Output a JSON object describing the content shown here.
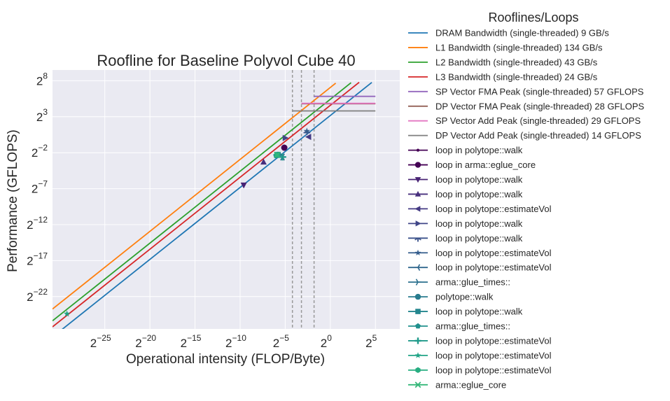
{
  "chart_data": {
    "type": "line",
    "title": "Roofline for Baseline Polyvol Cube 40",
    "xlabel": "Operational intensity (FLOP/Byte)",
    "ylabel": "Performance (GFLOPS)",
    "xscale": "log2",
    "yscale": "log2",
    "xlim_log2": [
      -30.8,
      7.7
    ],
    "ylim_log2": [
      -26.5,
      9.5
    ],
    "xticks": [
      {
        "base": "2",
        "exp": "−25",
        "v": -25
      },
      {
        "base": "2",
        "exp": "−20",
        "v": -20
      },
      {
        "base": "2",
        "exp": "−15",
        "v": -15
      },
      {
        "base": "2",
        "exp": "−10",
        "v": -10
      },
      {
        "base": "2",
        "exp": "−5",
        "v": -5
      },
      {
        "base": "2",
        "exp": "0",
        "v": 0
      },
      {
        "base": "2",
        "exp": "5",
        "v": 5
      }
    ],
    "yticks": [
      {
        "base": "2",
        "exp": "−22",
        "v": -22
      },
      {
        "base": "2",
        "exp": "−17",
        "v": -17
      },
      {
        "base": "2",
        "exp": "−12",
        "v": -12
      },
      {
        "base": "2",
        "exp": "−7",
        "v": -7
      },
      {
        "base": "2",
        "exp": "−2",
        "v": -2
      },
      {
        "base": "2",
        "exp": "3",
        "v": 3
      },
      {
        "base": "2",
        "exp": "8",
        "v": 8
      }
    ],
    "grid": true,
    "legend_title": "Rooflines/Loops",
    "legend_position": "outside-right",
    "bandwidth_rooflines": [
      {
        "name": "DRAM Bandwidth (single-threaded) 9 GB/s",
        "gbps": 9,
        "color": "#1f77b4",
        "x_end_log2": 4.6
      },
      {
        "name": "L1 Bandwidth (single-threaded) 134 GB/s",
        "gbps": 134,
        "color": "#ff7f0e",
        "x_end_log2": 0.6
      },
      {
        "name": "L2 Bandwidth (single-threaded) 43 GB/s",
        "gbps": 43,
        "color": "#2ca02c",
        "x_end_log2": 2.3
      },
      {
        "name": "L3 Bandwidth (single-threaded) 24 GB/s",
        "gbps": 24,
        "color": "#d62728",
        "x_end_log2": 3.2
      }
    ],
    "compute_rooflines": [
      {
        "name": "SP Vector FMA Peak (single-threaded) 57 GFLOPS",
        "gflops": 57,
        "color": "#9467bd",
        "x_start_log2": -1.8
      },
      {
        "name": "DP Vector FMA Peak (single-threaded) 28 GFLOPS",
        "gflops": 28,
        "color": "#8c564b",
        "x_start_log2": -3.2
      },
      {
        "name": "SP Vector Add Peak (single-threaded) 29 GFLOPS",
        "gflops": 29,
        "color": "#e377c2",
        "x_start_log2": -3.2
      },
      {
        "name": "DP Vector Add Peak (single-threaded) 14 GFLOPS",
        "gflops": 14,
        "color": "#7f7f7f",
        "x_start_log2": -4.2
      }
    ],
    "compute_x_end_log2": 5.0,
    "ridge_lines_log2": [
      -4.2,
      -3.2,
      -1.8
    ],
    "loops": [
      {
        "name": "loop in polytope::walk",
        "marker": "point",
        "color": "#440154",
        "x": -5.1,
        "y": -1.3
      },
      {
        "name": "loop in arma::eglue_core",
        "marker": "circle",
        "color": "#440154",
        "x": -5.1,
        "y": -1.3
      },
      {
        "name": "loop in polytope::walk",
        "marker": "triangle-down",
        "color": "#482374",
        "x": -9.6,
        "y": -6.5
      },
      {
        "name": "loop in polytope::walk",
        "marker": "triangle-up",
        "color": "#472f7d",
        "x": -7.4,
        "y": -3.3
      },
      {
        "name": "loop in polytope::estimateVol",
        "marker": "triangle-left",
        "color": "#443a83",
        "x": -2.4,
        "y": 0.2
      },
      {
        "name": "loop in polytope::walk",
        "marker": "triangle-right",
        "color": "#404688",
        "x": -5.0,
        "y": 0.05
      },
      {
        "name": "loop in polytope::walk",
        "marker": "tri-down",
        "color": "#3b528b",
        "x": -2.6,
        "y": 1.0
      },
      {
        "name": "loop in polytope::estimateVol",
        "marker": "star",
        "color": "#355e8d",
        "x": -2.6,
        "y": 1.0
      },
      {
        "name": "loop in polytope::estimateVol",
        "marker": "tri-left",
        "color": "#31688e",
        "x": -5.3,
        "y": -2.6
      },
      {
        "name": "arma::glue_times::",
        "marker": "tri-right",
        "color": "#2c718e",
        "x": -5.3,
        "y": -2.6
      },
      {
        "name": "polytope::walk",
        "marker": "circle",
        "color": "#287c8e",
        "x": -5.8,
        "y": -2.3
      },
      {
        "name": "loop in polytope::walk",
        "marker": "square",
        "color": "#24868e",
        "x": -5.8,
        "y": -2.3
      },
      {
        "name": "arma::glue_times::",
        "marker": "pentagon",
        "color": "#21908d",
        "x": -6.0,
        "y": -2.4
      },
      {
        "name": "loop in polytope::estimateVol",
        "marker": "plus",
        "color": "#1f9a8a",
        "x": -5.3,
        "y": -2.6
      },
      {
        "name": "loop in polytope::estimateVol",
        "marker": "star",
        "color": "#20a486",
        "x": -29.2,
        "y": -24.4
      },
      {
        "name": "loop in polytope::estimateVol",
        "marker": "hexagon",
        "color": "#27ad81",
        "x": -5.9,
        "y": -2.3
      },
      {
        "name": "arma::eglue_core",
        "marker": "x",
        "color": "#35b779",
        "x": -5.9,
        "y": -2.3
      }
    ]
  }
}
